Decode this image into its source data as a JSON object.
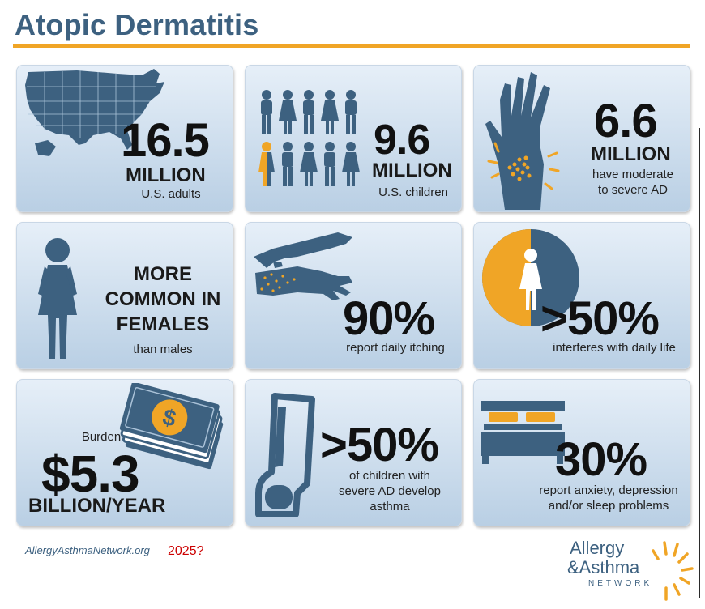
{
  "title": "Atopic Dermatitis",
  "colors": {
    "navy": "#3d6180",
    "gold": "#f0a526",
    "card_top": "#e6eff8",
    "card_bottom": "#b9cfe4"
  },
  "cards": [
    {
      "big": "16.5",
      "mid": "MILLION",
      "small": "U.S. adults",
      "icon": "us-map-icon"
    },
    {
      "big": "9.6",
      "mid": "MILLION",
      "small": "U.S. children",
      "icon": "children-icon"
    },
    {
      "big": "6.6",
      "mid": "MILLION",
      "small": "have moderate to severe AD",
      "icon": "hand-icon"
    },
    {
      "mid": "MORE COMMON IN FEMALES",
      "small": "than males",
      "icon": "female-icon"
    },
    {
      "big": "90%",
      "small": "report daily itching",
      "icon": "scratching-hand-icon"
    },
    {
      "big": ">50%",
      "small": "interferes with daily life",
      "icon": "pie-female-icon"
    },
    {
      "label": "Burden",
      "big": "$5.3",
      "mid": "BILLION/YEAR",
      "icon": "money-icon"
    },
    {
      "big": ">50%",
      "small": "of children with severe AD develop asthma",
      "icon": "inhaler-icon"
    },
    {
      "big": "30%",
      "small": "report anxiety, depression and/or sleep problems",
      "icon": "bed-icon"
    }
  ],
  "footer": {
    "url": "AllergyAsthmaNetwork.org",
    "note": "2025?"
  },
  "logo": {
    "line1": "Allergy",
    "line2": "&Asthma",
    "line3": "NETWORK"
  }
}
